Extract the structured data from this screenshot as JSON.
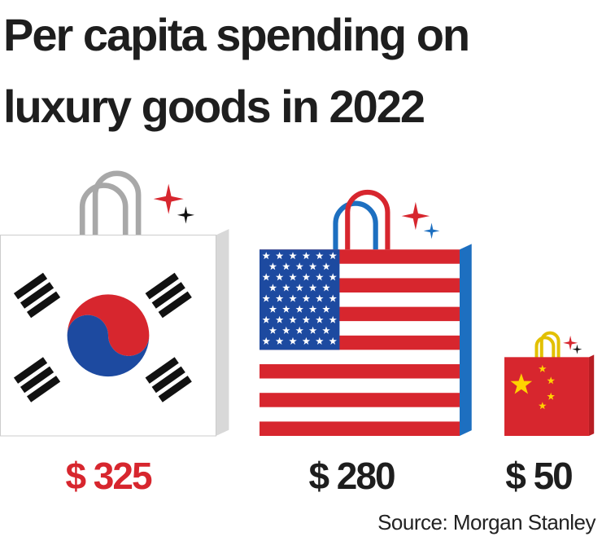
{
  "chart_data": {
    "type": "pictorial-bar",
    "title": [
      "Per capita spending on",
      "luxury goods in 2022"
    ],
    "categories": [
      null,
      null,
      null
    ],
    "values": [
      325,
      280,
      50
    ],
    "value_labels": [
      "$ 325",
      "$ 280",
      "$ 50"
    ],
    "value_label_colors": [
      "#d7262e",
      "#1e1e1e",
      "#1e1e1e"
    ],
    "source": "Source: Morgan Stanley"
  }
}
